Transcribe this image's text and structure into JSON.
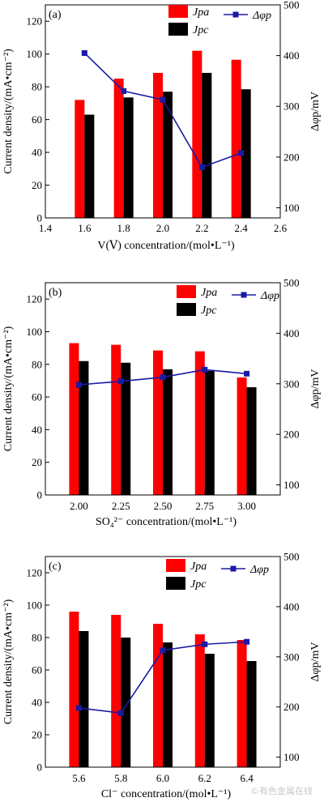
{
  "chart_data": [
    {
      "panel": "(a)",
      "type": "bar",
      "x_kind": "numeric",
      "x": [
        1.6,
        1.8,
        2.0,
        2.2,
        2.4
      ],
      "xlim": [
        1.4,
        2.6
      ],
      "xticks": [
        "1.4",
        "1.6",
        "1.8",
        "2.0",
        "2.2",
        "2.4",
        "2.6"
      ],
      "xlabel": "V(Ⅴ) concentration/(mol•L⁻¹)",
      "ylabel": "Current density/(mA•cm⁻²)",
      "ylim": [
        0,
        130
      ],
      "yticks": [
        "0",
        "20",
        "40",
        "60",
        "80",
        "100",
        "120"
      ],
      "y2label": "Δφp/mV",
      "y2lim": [
        80,
        500
      ],
      "y2ticks": [
        "100",
        "200",
        "300",
        "400",
        "500"
      ],
      "series": [
        {
          "name": "Jpa",
          "kind": "bar",
          "color": "#ff0000",
          "values": [
            72,
            85,
            88.5,
            102,
            96.5
          ]
        },
        {
          "name": "Jpc",
          "kind": "bar",
          "color": "#000000",
          "values": [
            63,
            73.5,
            77,
            88.5,
            78.5
          ]
        },
        {
          "name": "Δφp",
          "kind": "line",
          "axis": "right",
          "color": "#1a1aa6",
          "values": [
            405,
            330,
            313,
            180,
            208
          ]
        }
      ],
      "legend": [
        "Jpa",
        "Jpc",
        "Δφp"
      ]
    },
    {
      "panel": "(b)",
      "type": "bar",
      "x_kind": "categorical",
      "categories": [
        "2.00",
        "2.25",
        "2.50",
        "2.75",
        "3.00"
      ],
      "xlabel": "SO₄²⁻ concentration/(mol•L⁻¹)",
      "ylabel": "Current density/(mA•cm⁻²)",
      "ylim": [
        0,
        130
      ],
      "yticks": [
        "0",
        "20",
        "40",
        "60",
        "80",
        "100",
        "120"
      ],
      "y2label": "Δφp/mV",
      "y2lim": [
        80,
        500
      ],
      "y2ticks": [
        "100",
        "200",
        "300",
        "400",
        "500"
      ],
      "series": [
        {
          "name": "Jpa",
          "kind": "bar",
          "color": "#ff0000",
          "values": [
            93,
            92,
            88.5,
            88,
            72
          ]
        },
        {
          "name": "Jpc",
          "kind": "bar",
          "color": "#000000",
          "values": [
            82,
            81,
            77,
            76,
            66
          ]
        },
        {
          "name": "Δφp",
          "kind": "line",
          "axis": "right",
          "color": "#1a1aa6",
          "values": [
            298,
            305,
            313,
            328,
            320
          ]
        }
      ],
      "legend": [
        "Jpa",
        "Jpc",
        "Δφp"
      ]
    },
    {
      "panel": "(c)",
      "type": "bar",
      "x_kind": "categorical",
      "categories": [
        "5.6",
        "5.8",
        "6.0",
        "6.2",
        "6.4"
      ],
      "xlabel": "Cl⁻ concentration/(mol•L⁻¹)",
      "ylabel": "Current density/(mA•cm⁻²)",
      "ylim": [
        0,
        130
      ],
      "yticks": [
        "0",
        "20",
        "40",
        "60",
        "80",
        "100",
        "120"
      ],
      "y2label": "Δφp/mV",
      "y2lim": [
        80,
        500
      ],
      "y2ticks": [
        "100",
        "200",
        "300",
        "400",
        "500"
      ],
      "series": [
        {
          "name": "Jpa",
          "kind": "bar",
          "color": "#ff0000",
          "values": [
            96,
            94,
            88.5,
            82,
            78.5
          ]
        },
        {
          "name": "Jpc",
          "kind": "bar",
          "color": "#000000",
          "values": [
            84,
            80,
            77,
            70,
            65.5
          ]
        },
        {
          "name": "Δφp",
          "kind": "line",
          "axis": "right",
          "color": "#1a1aa6",
          "values": [
            198,
            188,
            313,
            325,
            330
          ]
        }
      ],
      "legend": [
        "Jpa",
        "Jpc",
        "Δφp"
      ]
    }
  ],
  "watermark": "©有色金属在线"
}
